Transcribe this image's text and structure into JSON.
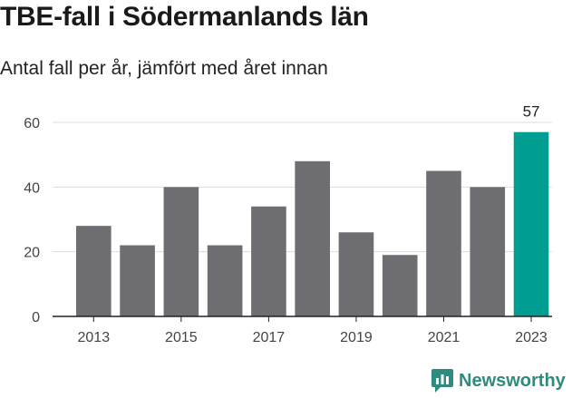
{
  "title": "TBE-fall i Södermanlands län",
  "subtitle": "Antal fall per år, jämfört med året innan",
  "brand": "Newsworthy",
  "colors": {
    "bar": "#6e6d72",
    "highlight": "#009e92",
    "grid": "#dddddd",
    "axis": "#222222",
    "brand": "#2e8b7e"
  },
  "chart_data": {
    "type": "bar",
    "categories": [
      "2013",
      "2014",
      "2015",
      "2016",
      "2017",
      "2018",
      "2019",
      "2020",
      "2021",
      "2022",
      "2023"
    ],
    "values": [
      28,
      22,
      40,
      22,
      34,
      48,
      26,
      19,
      45,
      40,
      57
    ],
    "highlight_index": 10,
    "data_labels": [
      {
        "index": 10,
        "text": "57"
      }
    ],
    "x_tick_labels": [
      "2013",
      "2015",
      "2017",
      "2019",
      "2021",
      "2023"
    ],
    "y_ticks": [
      0,
      20,
      40,
      60
    ],
    "ylim": [
      0,
      60
    ],
    "grid": true,
    "xlabel": "",
    "ylabel": ""
  }
}
